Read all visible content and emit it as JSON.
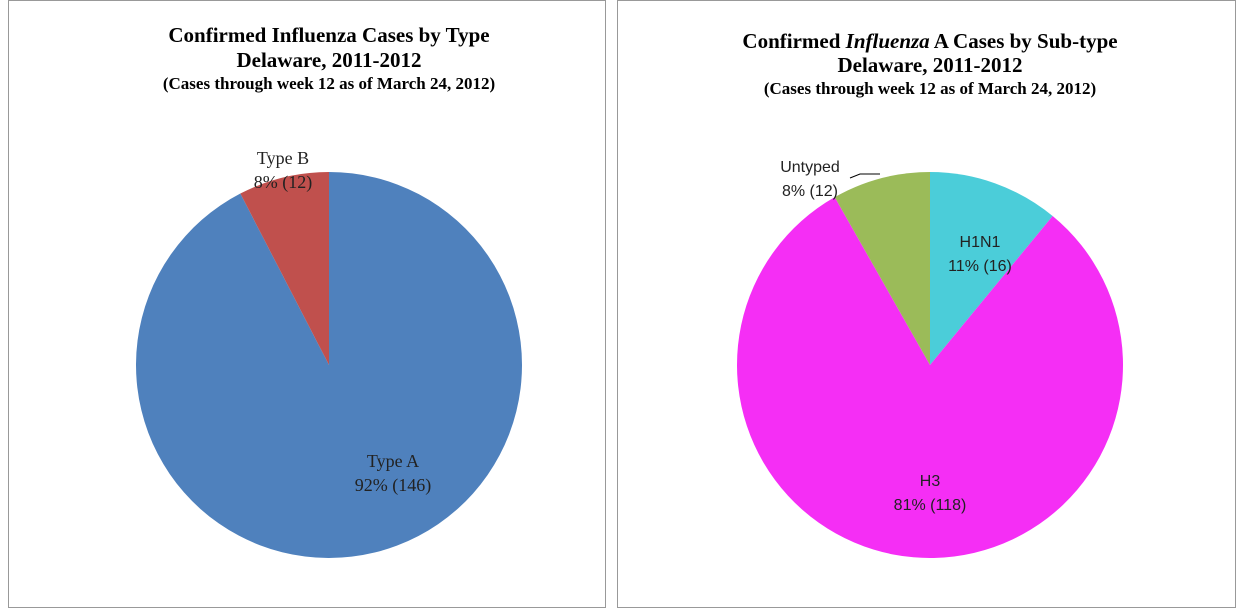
{
  "chart_data": [
    {
      "type": "pie",
      "title": [
        "Confirmed Influenza  Cases by Type"
      ],
      "subtitle": [
        "Delaware, 2011-2012",
        "(Cases through  week 12 as of March 24, 2012)"
      ],
      "categories": [
        "Type A",
        "Type B"
      ],
      "values": [
        146,
        12
      ],
      "value_labels": [
        "92% (146)",
        "8% (12)"
      ],
      "colors": [
        "#4f81bd",
        "#c0504d"
      ]
    },
    {
      "type": "pie",
      "title": [
        "Confirmed ",
        "Influenza",
        "  A Cases by Sub-type"
      ],
      "subtitle": [
        "Delaware, 2011-2012",
        "(Cases through  week 12 as of March 24, 2012)"
      ],
      "categories": [
        "H1N1",
        "H3",
        "Untyped"
      ],
      "values": [
        16,
        118,
        12
      ],
      "value_labels": [
        "11% (16)",
        "81% (118)",
        "8% (12)"
      ],
      "colors": [
        "#4bcdd9",
        "#f52ef5",
        "#9bbb59"
      ]
    }
  ]
}
